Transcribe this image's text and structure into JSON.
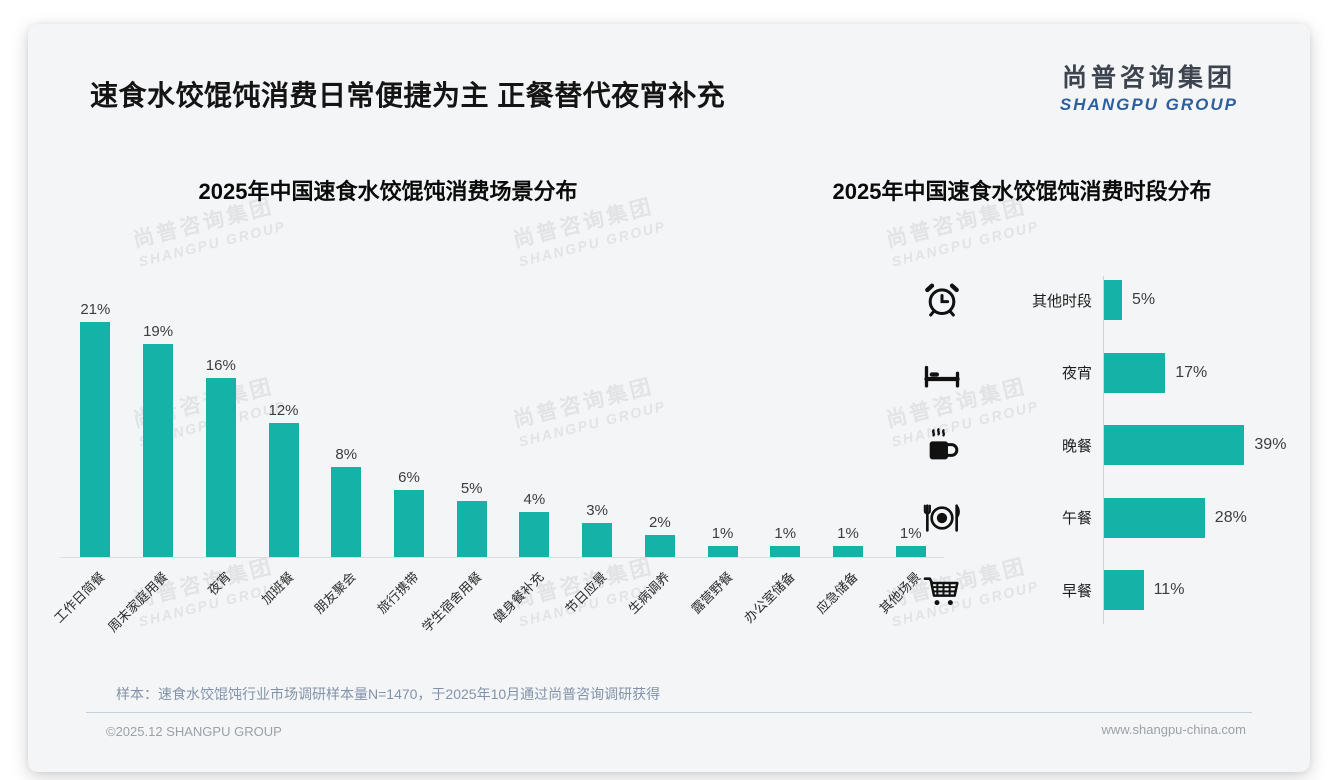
{
  "header": {
    "title": "速食水饺馄饨消费日常便捷为主 正餐替代夜宵补充",
    "logo_zh": "尚普咨询集团",
    "logo_en": "SHANGPU GROUP"
  },
  "watermark": {
    "zh": "尚普咨询集团",
    "en": "SHANGPU GROUP"
  },
  "colors": {
    "bar_teal": "#15b2a8",
    "logo_blue": "#2e5f9d",
    "title_dark": "#141414"
  },
  "chart_data": [
    {
      "type": "bar",
      "orientation": "vertical",
      "title": "2025年中国速食水饺馄饨消费场景分布",
      "categories": [
        "工作日简餐",
        "周末家庭用餐",
        "夜宵",
        "加班餐",
        "朋友聚会",
        "旅行携带",
        "学生宿舍用餐",
        "健身餐补充",
        "节日应景",
        "生病调养",
        "露营野餐",
        "办公室储备",
        "应急储备",
        "其他场景"
      ],
      "values": [
        21,
        19,
        16,
        12,
        8,
        6,
        5,
        4,
        3,
        2,
        1,
        1,
        1,
        1
      ],
      "data_labels": [
        "21%",
        "19%",
        "16%",
        "12%",
        "8%",
        "6%",
        "5%",
        "4%",
        "3%",
        "2%",
        "1%",
        "1%",
        "1%",
        "1%"
      ],
      "unit": "%",
      "ylim": [
        0,
        22
      ],
      "grid": false,
      "legend": "none"
    },
    {
      "type": "bar",
      "orientation": "horizontal",
      "title": "2025年中国速食水饺馄饨消费时段分布",
      "categories": [
        "其他时段",
        "夜宵",
        "晚餐",
        "午餐",
        "早餐"
      ],
      "values": [
        5,
        17,
        39,
        28,
        11
      ],
      "data_labels": [
        "5%",
        "17%",
        "39%",
        "28%",
        "11%"
      ],
      "icons": [
        "alarm-clock",
        "bed",
        "hot-drink",
        "dining-plate",
        "shopping-cart"
      ],
      "unit": "%",
      "xlim": [
        0,
        40
      ],
      "grid": false,
      "legend": "none"
    }
  ],
  "footnote": "样本：速食水饺馄饨行业市场调研样本量N=1470，于2025年10月通过尚普咨询调研获得",
  "footer": {
    "left": "©2025.12 SHANGPU GROUP",
    "right": "www.shangpu-china.com"
  }
}
